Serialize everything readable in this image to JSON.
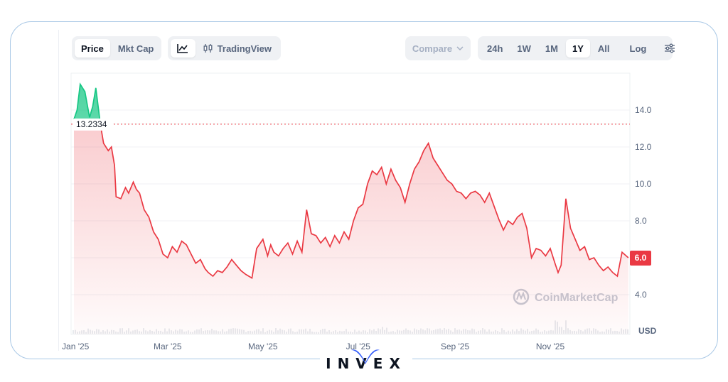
{
  "toolbar": {
    "metric_tabs": [
      "Price",
      "Mkt Cap"
    ],
    "view_tabs": {
      "trading_view": "TradingView"
    },
    "compare_label": "Compare",
    "range_buttons": [
      "24h",
      "1W",
      "1M",
      "1Y",
      "All"
    ],
    "log_label": "Log"
  },
  "logo_text": "INVEX",
  "colors": {
    "up": "#16c784",
    "down": "#ea3943",
    "accent_blue": "#3861fb",
    "frame": "#a9c8e6"
  },
  "chart_data": {
    "type": "line",
    "reference_label": "13.2334",
    "reference_value": 13.2334,
    "last_price_label": "6.0",
    "last_value": 6.0,
    "watermark": "CoinMarketCap",
    "currency_label": "USD",
    "ylim": [
      2.0,
      16.0
    ],
    "y_ticks": [
      "14.0",
      "12.0",
      "10.0",
      "8.0",
      "6.0",
      "4.0"
    ],
    "y_tick_values": [
      14,
      12,
      10,
      8,
      6,
      4
    ],
    "x_ticks": [
      "Jan '25",
      "Mar '25",
      "May '25",
      "Jul '25",
      "Sep '25",
      "Nov '25"
    ],
    "x_tick_days": [
      1,
      60,
      121,
      182,
      244,
      305
    ],
    "x_range_days": [
      0,
      356
    ],
    "series": [
      {
        "x": [
          0,
          2,
          4,
          7,
          10,
          12,
          14,
          17,
          19,
          22,
          24,
          26,
          27,
          30,
          33,
          35,
          38,
          40,
          42,
          45,
          48,
          51,
          54,
          57,
          60,
          63,
          66,
          69,
          72,
          75,
          78,
          81,
          84,
          86,
          89,
          92,
          95,
          98,
          101,
          104,
          107,
          110,
          114,
          117,
          121,
          124,
          126,
          128,
          131,
          134,
          137,
          140,
          143,
          146,
          149,
          152,
          155,
          158,
          161,
          164,
          167,
          170,
          173,
          176,
          179,
          182,
          185,
          188,
          191,
          194,
          197,
          200,
          203,
          206,
          209,
          212,
          215,
          218,
          221,
          224,
          227,
          230,
          233,
          236,
          239,
          242,
          245,
          248,
          251,
          254,
          257,
          260,
          263,
          266,
          269,
          272,
          275,
          278,
          281,
          284,
          287,
          290,
          293,
          296,
          299,
          302,
          305,
          308,
          310,
          312,
          315,
          318,
          321,
          324,
          327,
          330,
          333,
          336,
          339,
          342,
          345,
          348,
          351,
          355
        ],
        "y": [
          13.5,
          14.0,
          15.4,
          15.0,
          13.6,
          14.2,
          15.2,
          13.2,
          12.2,
          11.8,
          12.0,
          11.0,
          9.3,
          9.2,
          9.8,
          9.5,
          10.1,
          9.7,
          9.5,
          8.6,
          8.2,
          7.4,
          7.0,
          6.2,
          6.0,
          6.6,
          6.3,
          6.9,
          6.7,
          6.2,
          5.7,
          5.9,
          5.4,
          5.2,
          5.0,
          5.3,
          5.2,
          5.5,
          5.9,
          5.6,
          5.3,
          5.1,
          4.9,
          6.5,
          7.0,
          6.1,
          6.7,
          6.3,
          6.1,
          6.5,
          6.8,
          6.2,
          6.9,
          6.3,
          8.6,
          7.3,
          7.2,
          6.8,
          7.1,
          6.6,
          7.2,
          6.8,
          7.4,
          7.0,
          8.0,
          8.7,
          8.9,
          10.0,
          10.7,
          10.5,
          10.9,
          10.0,
          10.8,
          10.2,
          9.8,
          9.0,
          10.0,
          10.8,
          11.2,
          11.8,
          12.2,
          11.4,
          11.0,
          10.6,
          10.2,
          10.0,
          9.6,
          9.5,
          9.2,
          9.5,
          9.6,
          9.4,
          9.0,
          9.5,
          8.8,
          8.1,
          7.5,
          8.0,
          7.8,
          8.2,
          8.4,
          7.6,
          6.0,
          6.5,
          6.4,
          6.1,
          6.5,
          5.7,
          5.2,
          5.6,
          9.2,
          7.6,
          7.0,
          6.4,
          6.6,
          5.9,
          6.0,
          5.6,
          5.3,
          5.5,
          5.2,
          5.0,
          6.3,
          6.0
        ]
      }
    ]
  }
}
